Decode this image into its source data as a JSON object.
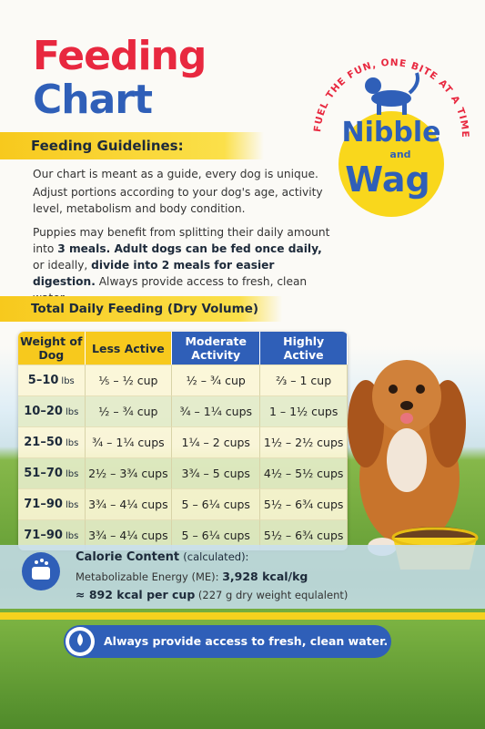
{
  "header": {
    "title_line1": "Feeding",
    "title_line2": "Chart"
  },
  "logo": {
    "slogan": "FUEL THE FUN, ONE BITE AT A TIME!",
    "word1": "Nibble",
    "word2": "and",
    "word3": "Wag"
  },
  "guidelines": {
    "heading": "Feeding Guidelines:",
    "paragraphs": [
      [
        {
          "text": "Our chart is meant as a guide, every dog is unique.",
          "bold": false
        }
      ],
      [
        {
          "text": "Adjust portions according to your dog's age, activity level, metabolism and body condition.",
          "bold": false
        }
      ],
      [
        {
          "text": "Puppies may benefit from splitting their daily amount into ",
          "bold": false
        },
        {
          "text": "3 meals. Adult dogs can be fed once daily,",
          "bold": true
        },
        {
          "text": " or ideally, ",
          "bold": false
        },
        {
          "text": "divide into 2 meals for easier digestion.",
          "bold": true
        },
        {
          "text": " Always provide access to fresh, clean water.",
          "bold": false
        }
      ]
    ]
  },
  "table": {
    "heading": "Total Daily Feeding (Dry Volume)",
    "columns": [
      "Weight of Dog",
      "Less Active",
      "Moderate Activity",
      "Highly Active"
    ],
    "rows": [
      {
        "weight": "5–10",
        "unit": "lbs",
        "cells": [
          "⅕ – ½ cup",
          "½ – ¾ cup",
          "⅔ – 1 cup"
        ]
      },
      {
        "weight": "10–20",
        "unit": "lbs",
        "cells": [
          "½ – ¾ cup",
          "¾ – 1¼ cups",
          "1 – 1½ cups"
        ]
      },
      {
        "weight": "21–50",
        "unit": "lbs",
        "cells": [
          "¾ – 1¼ cups",
          "1¼ – 2 cups",
          "1½ – 2½ cups"
        ]
      },
      {
        "weight": "51–70",
        "unit": "lbs",
        "cells": [
          "2½ – 3¾ cups",
          "3¾ – 5 cups",
          "4½ – 5½ cups"
        ]
      },
      {
        "weight": "71–90",
        "unit": "lbs",
        "cells": [
          "3¾ – 4¼ cups",
          "5 – 6¼ cups",
          "5½ – 6¾ cups"
        ]
      },
      {
        "weight": "71–90",
        "unit": "lbs",
        "cells": [
          "3¾ – 4¼ cups",
          "5 – 6¼ cups",
          "5½ – 6¾ cups"
        ]
      }
    ]
  },
  "calorie": {
    "title": "Calorie Content",
    "title_note": "(calculated):",
    "me_label": "Metabolizable Energy (ME):",
    "me_value": "3,928 kcal/kg",
    "cup_value": "≈ 892 kcal per cup",
    "cup_note": "(227 g dry weight equlalent)"
  },
  "footer": {
    "text": "Always provide access to fresh, clean water."
  }
}
